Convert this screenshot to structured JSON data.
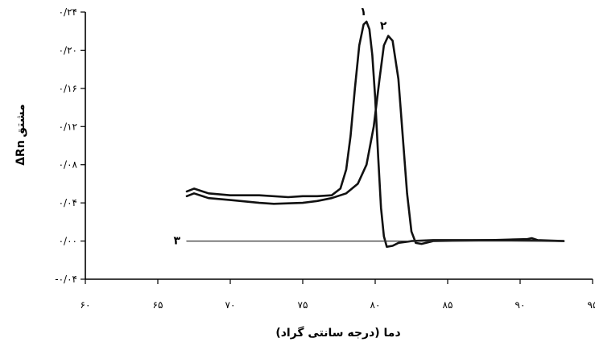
{
  "chart_data": {
    "type": "line",
    "xlabel": "دما (درجه سانتی گراد)",
    "ylabel_main": "ΔRn",
    "ylabel_sub": "مشتق",
    "xlim": [
      60,
      95
    ],
    "ylim": [
      -0.04,
      0.24
    ],
    "x_ticks": [
      {
        "value": 60,
        "label": "۶۰"
      },
      {
        "value": 65,
        "label": "۶۵"
      },
      {
        "value": 70,
        "label": "۷۰"
      },
      {
        "value": 75,
        "label": "۷۵"
      },
      {
        "value": 80,
        "label": "۸۰"
      },
      {
        "value": 85,
        "label": "۸۵"
      },
      {
        "value": 90,
        "label": "۹۰"
      },
      {
        "value": 95,
        "label": "۹۵"
      }
    ],
    "y_ticks": [
      {
        "value": -0.04,
        "label": "-۰/۰۴"
      },
      {
        "value": 0.0,
        "label": "۰/۰۰"
      },
      {
        "value": 0.04,
        "label": "۰/۰۴"
      },
      {
        "value": 0.08,
        "label": "۰/۰۸"
      },
      {
        "value": 0.12,
        "label": "۰/۱۲"
      },
      {
        "value": 0.16,
        "label": "۰/۱۶"
      },
      {
        "value": 0.2,
        "label": "۰/۲۰"
      },
      {
        "value": 0.24,
        "label": "۰/۲۴"
      }
    ],
    "series": [
      {
        "name": "۱",
        "points": [
          [
            67.0,
            0.052
          ],
          [
            67.5,
            0.055
          ],
          [
            68.5,
            0.05
          ],
          [
            70,
            0.048
          ],
          [
            72,
            0.048
          ],
          [
            74,
            0.046
          ],
          [
            75,
            0.047
          ],
          [
            76,
            0.047
          ],
          [
            77,
            0.048
          ],
          [
            77.6,
            0.055
          ],
          [
            78,
            0.075
          ],
          [
            78.3,
            0.11
          ],
          [
            78.6,
            0.16
          ],
          [
            78.9,
            0.205
          ],
          [
            79.2,
            0.227
          ],
          [
            79.4,
            0.23
          ],
          [
            79.6,
            0.222
          ],
          [
            79.8,
            0.195
          ],
          [
            80.0,
            0.15
          ],
          [
            80.2,
            0.09
          ],
          [
            80.4,
            0.035
          ],
          [
            80.6,
            0.005
          ],
          [
            80.8,
            -0.006
          ],
          [
            81.2,
            -0.005
          ],
          [
            81.6,
            -0.002
          ],
          [
            82.5,
            0.0
          ],
          [
            84,
            0.001
          ],
          [
            88,
            0.001
          ],
          [
            90.5,
            0.002
          ],
          [
            90.8,
            0.003
          ],
          [
            91.2,
            0.001
          ],
          [
            93,
            0.0
          ]
        ]
      },
      {
        "name": "۲",
        "points": [
          [
            67.0,
            0.047
          ],
          [
            67.5,
            0.05
          ],
          [
            68.5,
            0.045
          ],
          [
            70,
            0.043
          ],
          [
            72,
            0.04
          ],
          [
            73,
            0.039
          ],
          [
            75,
            0.04
          ],
          [
            76,
            0.042
          ],
          [
            77,
            0.045
          ],
          [
            78,
            0.05
          ],
          [
            78.8,
            0.06
          ],
          [
            79.4,
            0.08
          ],
          [
            79.9,
            0.12
          ],
          [
            80.3,
            0.17
          ],
          [
            80.6,
            0.205
          ],
          [
            80.9,
            0.215
          ],
          [
            81.2,
            0.21
          ],
          [
            81.6,
            0.17
          ],
          [
            81.9,
            0.11
          ],
          [
            82.2,
            0.05
          ],
          [
            82.5,
            0.01
          ],
          [
            82.8,
            -0.002
          ],
          [
            83.2,
            -0.003
          ],
          [
            84,
            0.0
          ],
          [
            88,
            0.001
          ],
          [
            93,
            0.0
          ]
        ]
      },
      {
        "name": "۳",
        "style": "thin",
        "points": [
          [
            67.0,
            0.0
          ],
          [
            93.0,
            0.0
          ]
        ]
      }
    ]
  }
}
